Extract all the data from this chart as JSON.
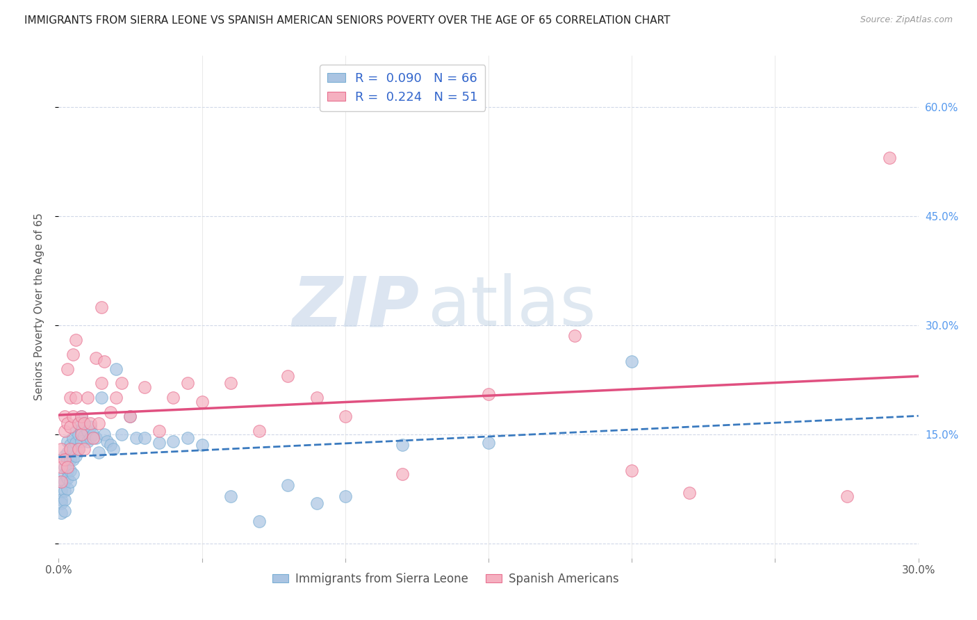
{
  "title": "IMMIGRANTS FROM SIERRA LEONE VS SPANISH AMERICAN SENIORS POVERTY OVER THE AGE OF 65 CORRELATION CHART",
  "source": "Source: ZipAtlas.com",
  "ylabel": "Seniors Poverty Over the Age of 65",
  "xlim": [
    0.0,
    0.3
  ],
  "ylim": [
    -0.02,
    0.67
  ],
  "xticks": [
    0.0,
    0.05,
    0.1,
    0.15,
    0.2,
    0.25,
    0.3
  ],
  "xtick_labels": [
    "0.0%",
    "",
    "",
    "",
    "",
    "",
    "30.0%"
  ],
  "yticks_right": [
    0.0,
    0.15,
    0.3,
    0.45,
    0.6
  ],
  "ytick_labels_right": [
    "",
    "15.0%",
    "30.0%",
    "45.0%",
    "60.0%"
  ],
  "series1_label": "Immigrants from Sierra Leone",
  "series1_R": "0.090",
  "series1_N": "66",
  "series1_color": "#aac4e2",
  "series1_edge_color": "#7aafd4",
  "series1_trend_color": "#3a7abf",
  "series2_label": "Spanish Americans",
  "series2_R": "0.224",
  "series2_N": "51",
  "series2_color": "#f5b0c0",
  "series2_edge_color": "#e87090",
  "series2_trend_color": "#e05080",
  "watermark_zip": "ZIP",
  "watermark_atlas": "atlas",
  "background_color": "#ffffff",
  "grid_color": "#d0d8e8",
  "title_fontsize": 11,
  "axis_label_fontsize": 11,
  "tick_fontsize": 11,
  "legend_fontsize": 13,
  "series1_x": [
    0.001,
    0.001,
    0.001,
    0.001,
    0.001,
    0.002,
    0.002,
    0.002,
    0.002,
    0.002,
    0.002,
    0.002,
    0.003,
    0.003,
    0.003,
    0.003,
    0.003,
    0.003,
    0.004,
    0.004,
    0.004,
    0.004,
    0.005,
    0.005,
    0.005,
    0.005,
    0.006,
    0.006,
    0.006,
    0.007,
    0.007,
    0.007,
    0.008,
    0.008,
    0.008,
    0.009,
    0.009,
    0.01,
    0.01,
    0.011,
    0.011,
    0.012,
    0.013,
    0.014,
    0.015,
    0.016,
    0.017,
    0.018,
    0.019,
    0.02,
    0.022,
    0.025,
    0.027,
    0.03,
    0.035,
    0.04,
    0.045,
    0.05,
    0.06,
    0.07,
    0.08,
    0.09,
    0.1,
    0.12,
    0.15,
    0.2
  ],
  "series1_y": [
    0.085,
    0.072,
    0.06,
    0.055,
    0.042,
    0.12,
    0.105,
    0.095,
    0.085,
    0.072,
    0.06,
    0.045,
    0.14,
    0.125,
    0.115,
    0.1,
    0.09,
    0.075,
    0.135,
    0.115,
    0.1,
    0.085,
    0.145,
    0.13,
    0.115,
    0.095,
    0.155,
    0.138,
    0.12,
    0.165,
    0.15,
    0.13,
    0.175,
    0.155,
    0.14,
    0.165,
    0.148,
    0.155,
    0.14,
    0.16,
    0.145,
    0.15,
    0.145,
    0.125,
    0.2,
    0.15,
    0.14,
    0.135,
    0.13,
    0.24,
    0.15,
    0.175,
    0.145,
    0.145,
    0.138,
    0.14,
    0.145,
    0.135,
    0.065,
    0.03,
    0.08,
    0.055,
    0.065,
    0.135,
    0.138,
    0.25
  ],
  "series2_x": [
    0.001,
    0.001,
    0.001,
    0.002,
    0.002,
    0.002,
    0.003,
    0.003,
    0.003,
    0.004,
    0.004,
    0.004,
    0.005,
    0.005,
    0.006,
    0.006,
    0.007,
    0.007,
    0.008,
    0.008,
    0.009,
    0.009,
    0.01,
    0.011,
    0.012,
    0.013,
    0.014,
    0.015,
    0.015,
    0.016,
    0.018,
    0.02,
    0.022,
    0.025,
    0.03,
    0.035,
    0.04,
    0.045,
    0.05,
    0.06,
    0.07,
    0.08,
    0.09,
    0.1,
    0.12,
    0.15,
    0.18,
    0.2,
    0.22,
    0.275,
    0.29
  ],
  "series2_y": [
    0.13,
    0.105,
    0.085,
    0.175,
    0.155,
    0.115,
    0.24,
    0.165,
    0.105,
    0.2,
    0.16,
    0.13,
    0.26,
    0.175,
    0.28,
    0.2,
    0.165,
    0.13,
    0.175,
    0.15,
    0.165,
    0.13,
    0.2,
    0.165,
    0.145,
    0.255,
    0.165,
    0.325,
    0.22,
    0.25,
    0.18,
    0.2,
    0.22,
    0.175,
    0.215,
    0.155,
    0.2,
    0.22,
    0.195,
    0.22,
    0.155,
    0.23,
    0.2,
    0.175,
    0.095,
    0.205,
    0.285,
    0.1,
    0.07,
    0.065,
    0.53
  ],
  "trend1_x0": 0.0,
  "trend1_y0": 0.105,
  "trend1_x1": 0.3,
  "trend1_y1": 0.152,
  "trend2_x0": 0.0,
  "trend2_y0": 0.115,
  "trend2_x1": 0.3,
  "trend2_y1": 0.28
}
